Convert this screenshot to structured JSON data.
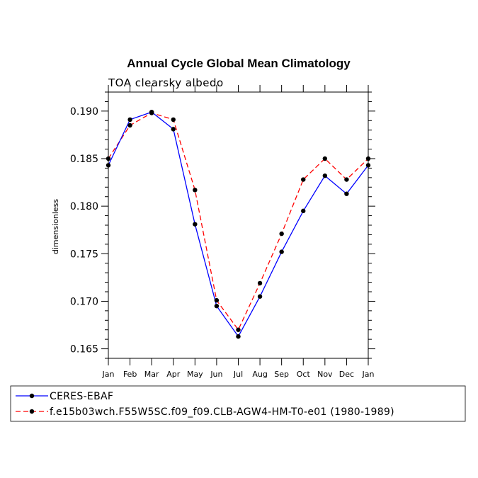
{
  "chart_data": {
    "type": "line",
    "title": "Annual Cycle Global Mean Climatology",
    "subtitle": "TOA clearsky albedo",
    "xlabel": "",
    "ylabel": "dimensionless",
    "categories": [
      "Jan",
      "Feb",
      "Mar",
      "Apr",
      "May",
      "Jun",
      "Jul",
      "Aug",
      "Sep",
      "Oct",
      "Nov",
      "Dec",
      "Jan"
    ],
    "ylim": [
      0.164,
      0.192
    ],
    "yticks": [
      "0.165",
      "0.170",
      "0.175",
      "0.180",
      "0.185",
      "0.190"
    ],
    "ytick_values": [
      0.165,
      0.17,
      0.175,
      0.18,
      0.185,
      0.19
    ],
    "grid": false,
    "legend_position": "bottom",
    "series": [
      {
        "name": "CERES-EBAF",
        "color": "#0000ff",
        "line_style": "solid",
        "values": [
          0.1843,
          0.1891,
          0.1899,
          0.1881,
          0.1781,
          0.1695,
          0.1663,
          0.1705,
          0.1752,
          0.1795,
          0.1832,
          0.1813,
          0.1843
        ]
      },
      {
        "name": "f.e15b03wch.F55W5SC.f09_f09.CLB-AGW4-HM-T0-e01 (1980-1989)",
        "color": "#ff0000",
        "line_style": "dashed",
        "values": [
          0.185,
          0.1885,
          0.1898,
          0.1891,
          0.1817,
          0.1701,
          0.167,
          0.1719,
          0.1771,
          0.1828,
          0.185,
          0.1828,
          0.185
        ]
      }
    ]
  }
}
